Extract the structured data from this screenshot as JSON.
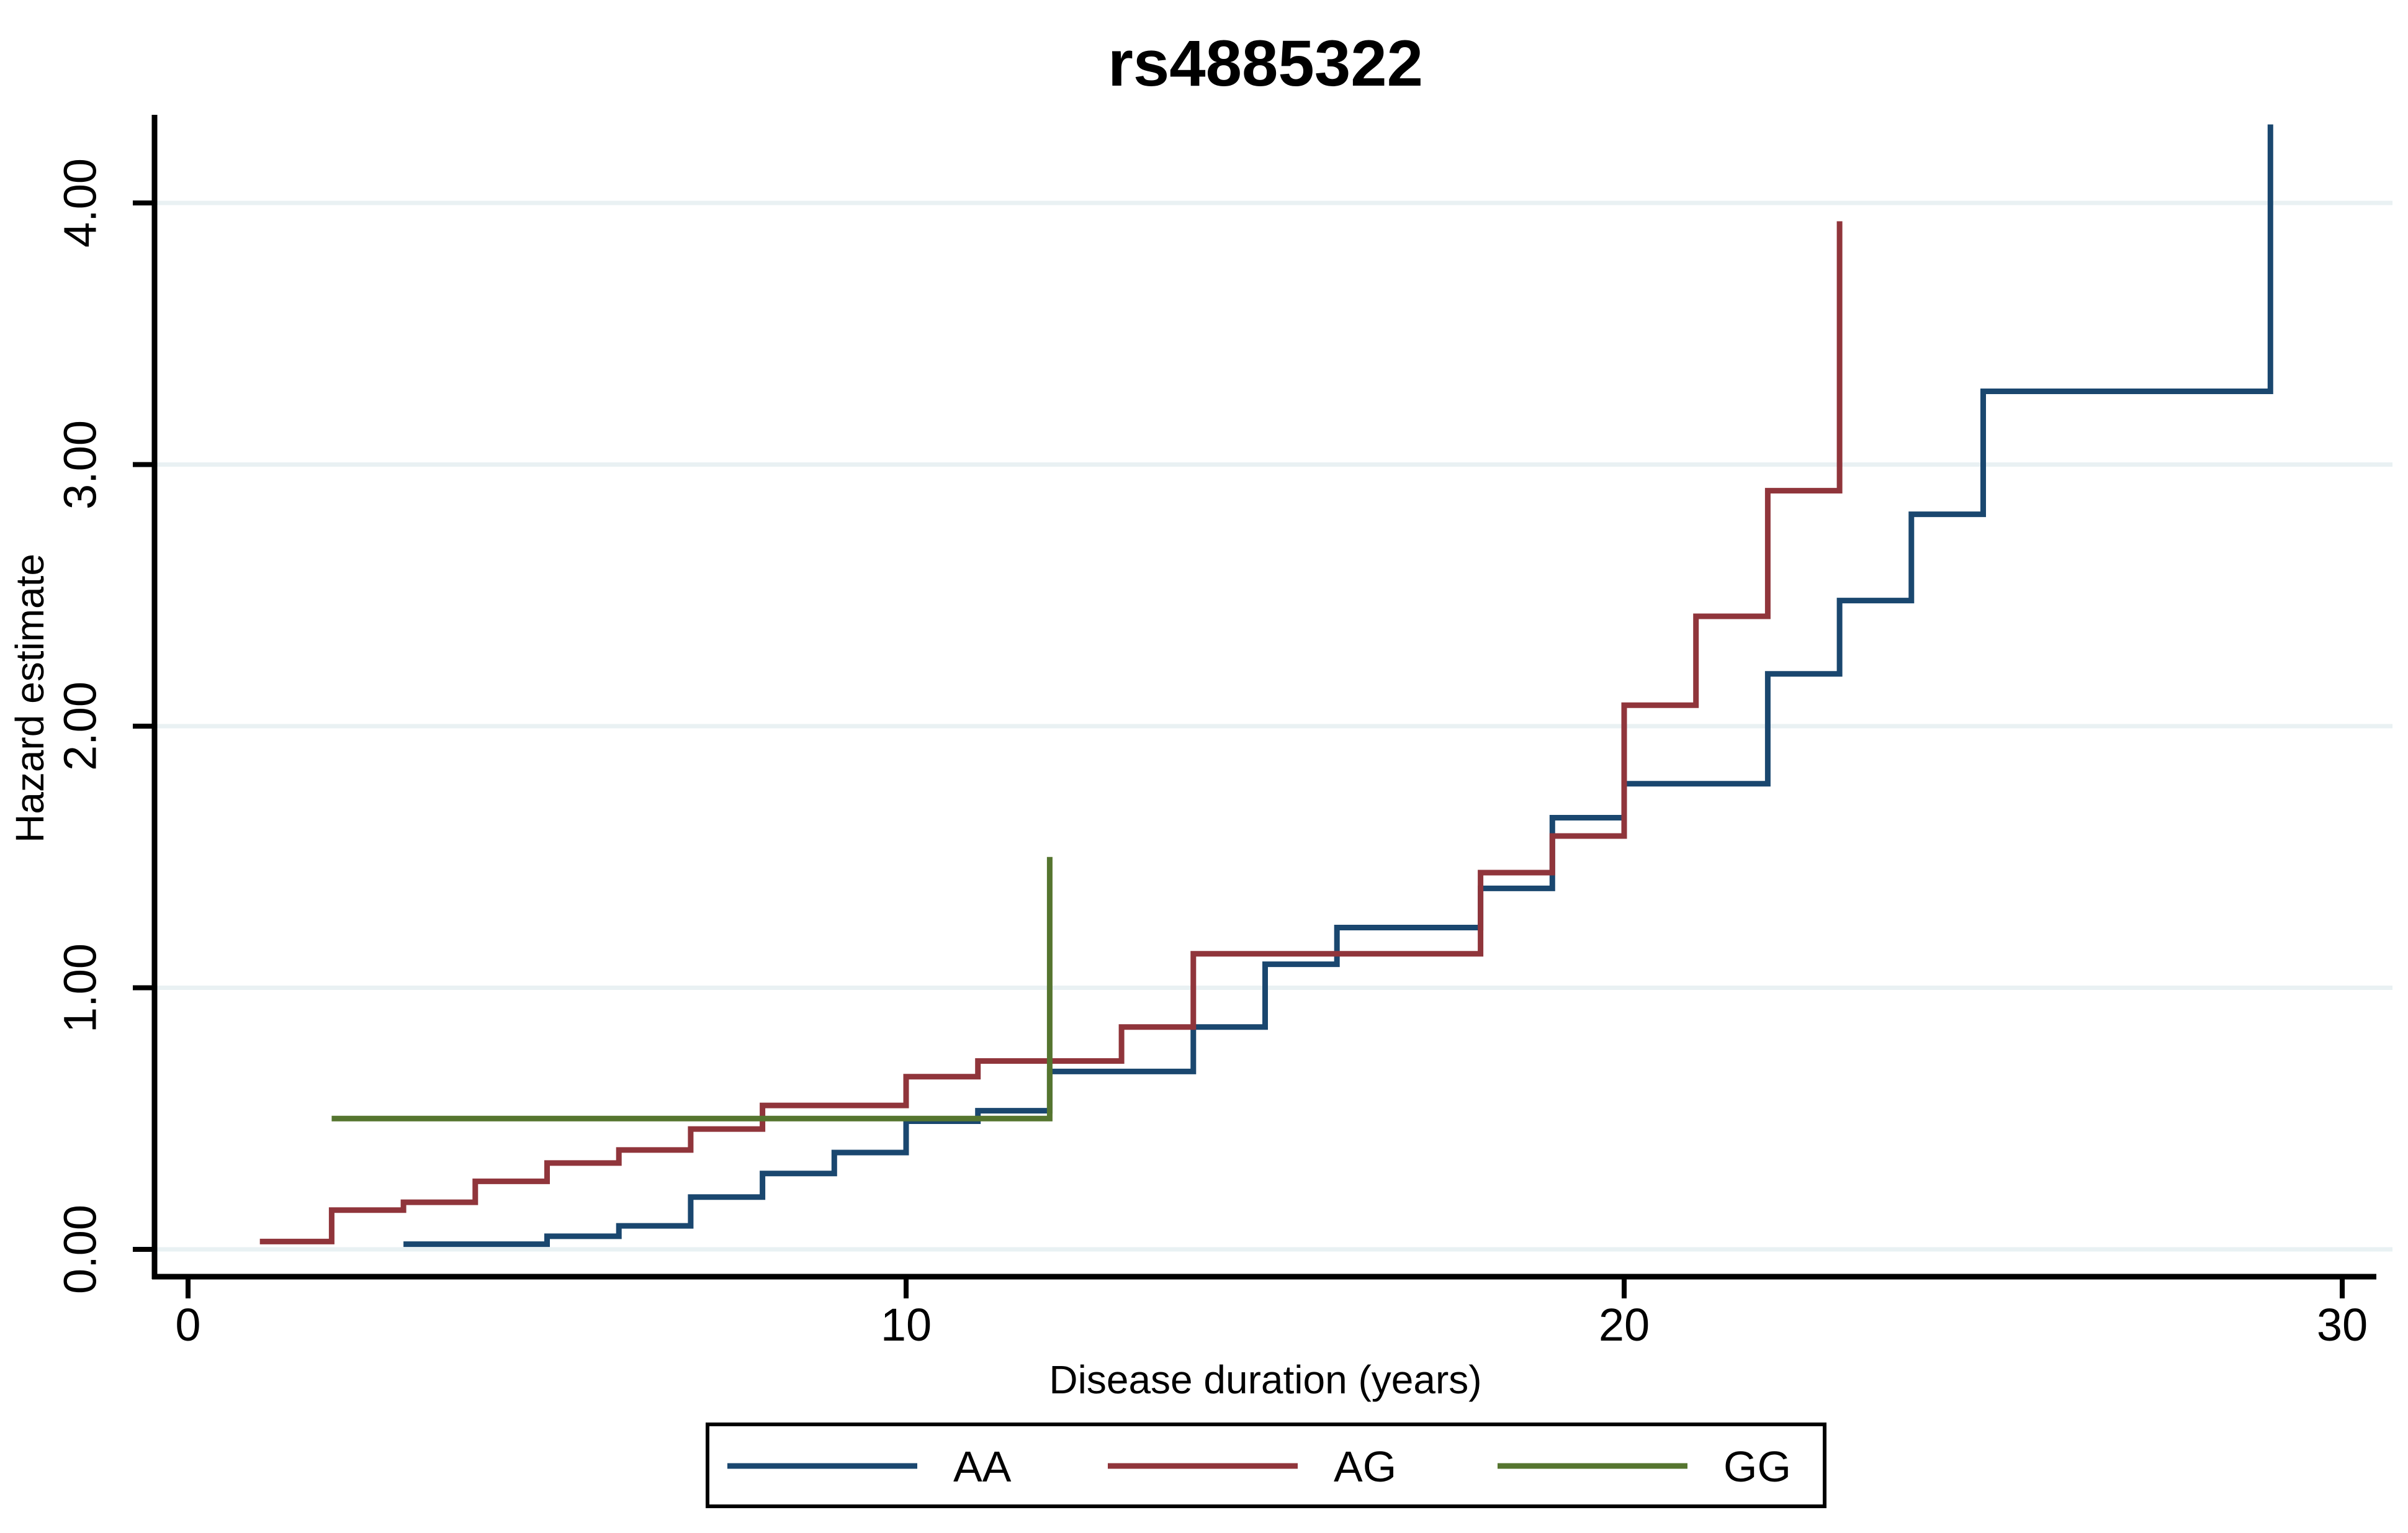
{
  "title": {
    "text": "rs4885322",
    "color": "#263257"
  },
  "chart_data": {
    "type": "line",
    "subtype": "step-after-cumulative-hazard",
    "title": "rs4885322",
    "xlabel": "Disease duration (years)",
    "ylabel": "Hazard estimate",
    "xlim": [
      0,
      30.7
    ],
    "ylim": [
      0,
      4.45
    ],
    "x_ticks": [
      0,
      10,
      20,
      30
    ],
    "x_tick_labels": [
      "0",
      "10",
      "20",
      "30"
    ],
    "y_ticks": [
      0,
      1,
      2,
      3,
      4
    ],
    "y_tick_labels": [
      "0.00",
      "1.00",
      "2.00",
      "3.00",
      "4.00"
    ],
    "grid": "horizontal-only",
    "gridline_color": "#e9f1f3",
    "legend_position": "bottom-center",
    "series": [
      {
        "name": "AA",
        "color": "#1a476f",
        "points": [
          [
            3,
            0.02
          ],
          [
            5,
            0.05
          ],
          [
            6,
            0.09
          ],
          [
            7,
            0.2
          ],
          [
            8,
            0.29
          ],
          [
            9,
            0.37
          ],
          [
            10,
            0.49
          ],
          [
            11,
            0.53
          ],
          [
            12,
            0.68
          ],
          [
            14,
            0.85
          ],
          [
            15,
            1.09
          ],
          [
            16,
            1.23
          ],
          [
            18,
            1.38
          ],
          [
            19,
            1.65
          ],
          [
            20,
            1.78
          ],
          [
            22,
            2.2
          ],
          [
            23,
            2.48
          ],
          [
            24,
            2.81
          ],
          [
            25,
            3.28
          ],
          [
            29,
            4.3
          ]
        ]
      },
      {
        "name": "AG",
        "color": "#90353b",
        "points": [
          [
            1,
            0.03
          ],
          [
            2,
            0.15
          ],
          [
            3,
            0.18
          ],
          [
            4,
            0.26
          ],
          [
            5,
            0.33
          ],
          [
            6,
            0.38
          ],
          [
            7,
            0.46
          ],
          [
            8,
            0.55
          ],
          [
            10,
            0.66
          ],
          [
            11,
            0.72
          ],
          [
            13,
            0.85
          ],
          [
            14,
            1.13
          ],
          [
            18,
            1.44
          ],
          [
            19,
            1.58
          ],
          [
            20,
            2.08
          ],
          [
            21,
            2.42
          ],
          [
            22,
            2.9
          ],
          [
            23,
            3.93
          ]
        ]
      },
      {
        "name": "GG",
        "color": "#55752f",
        "points": [
          [
            2,
            0.5
          ],
          [
            12,
            1.5
          ]
        ]
      }
    ]
  }
}
